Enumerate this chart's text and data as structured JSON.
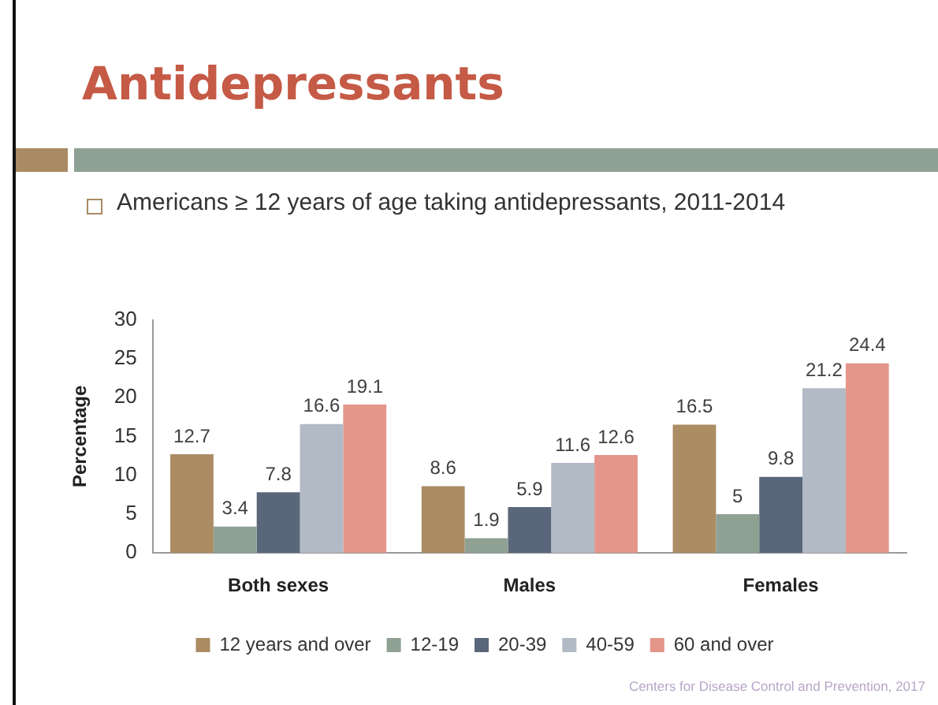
{
  "chart_data": {
    "type": "bar",
    "title": "Antidepressants",
    "subtitle": "Americans ≥ 12 years of age taking antidepressants, 2011-2014",
    "ylabel": "Percentage",
    "categories": [
      "Both sexes",
      "Males",
      "Females"
    ],
    "series": [
      {
        "name": "12 years and over",
        "color": "#ab8c63",
        "values": [
          12.7,
          8.6,
          16.5
        ]
      },
      {
        "name": "12-19",
        "color": "#8fa193",
        "values": [
          3.4,
          1.9,
          5
        ]
      },
      {
        "name": "20-39",
        "color": "#5a677a",
        "values": [
          7.8,
          5.9,
          9.8
        ]
      },
      {
        "name": "40-59",
        "color": "#b2bac6",
        "values": [
          16.6,
          11.6,
          21.2
        ]
      },
      {
        "name": "60 and over",
        "color": "#e4968a",
        "values": [
          19.1,
          12.6,
          24.4
        ]
      }
    ],
    "ylim": [
      0,
      30
    ],
    "yticks": [
      0,
      5,
      10,
      15,
      20,
      25,
      30
    ],
    "grid": false,
    "legend": "bottom",
    "data_labels": true,
    "annotations": [
      "Centers for Disease Control and Prevention, 2017"
    ]
  }
}
